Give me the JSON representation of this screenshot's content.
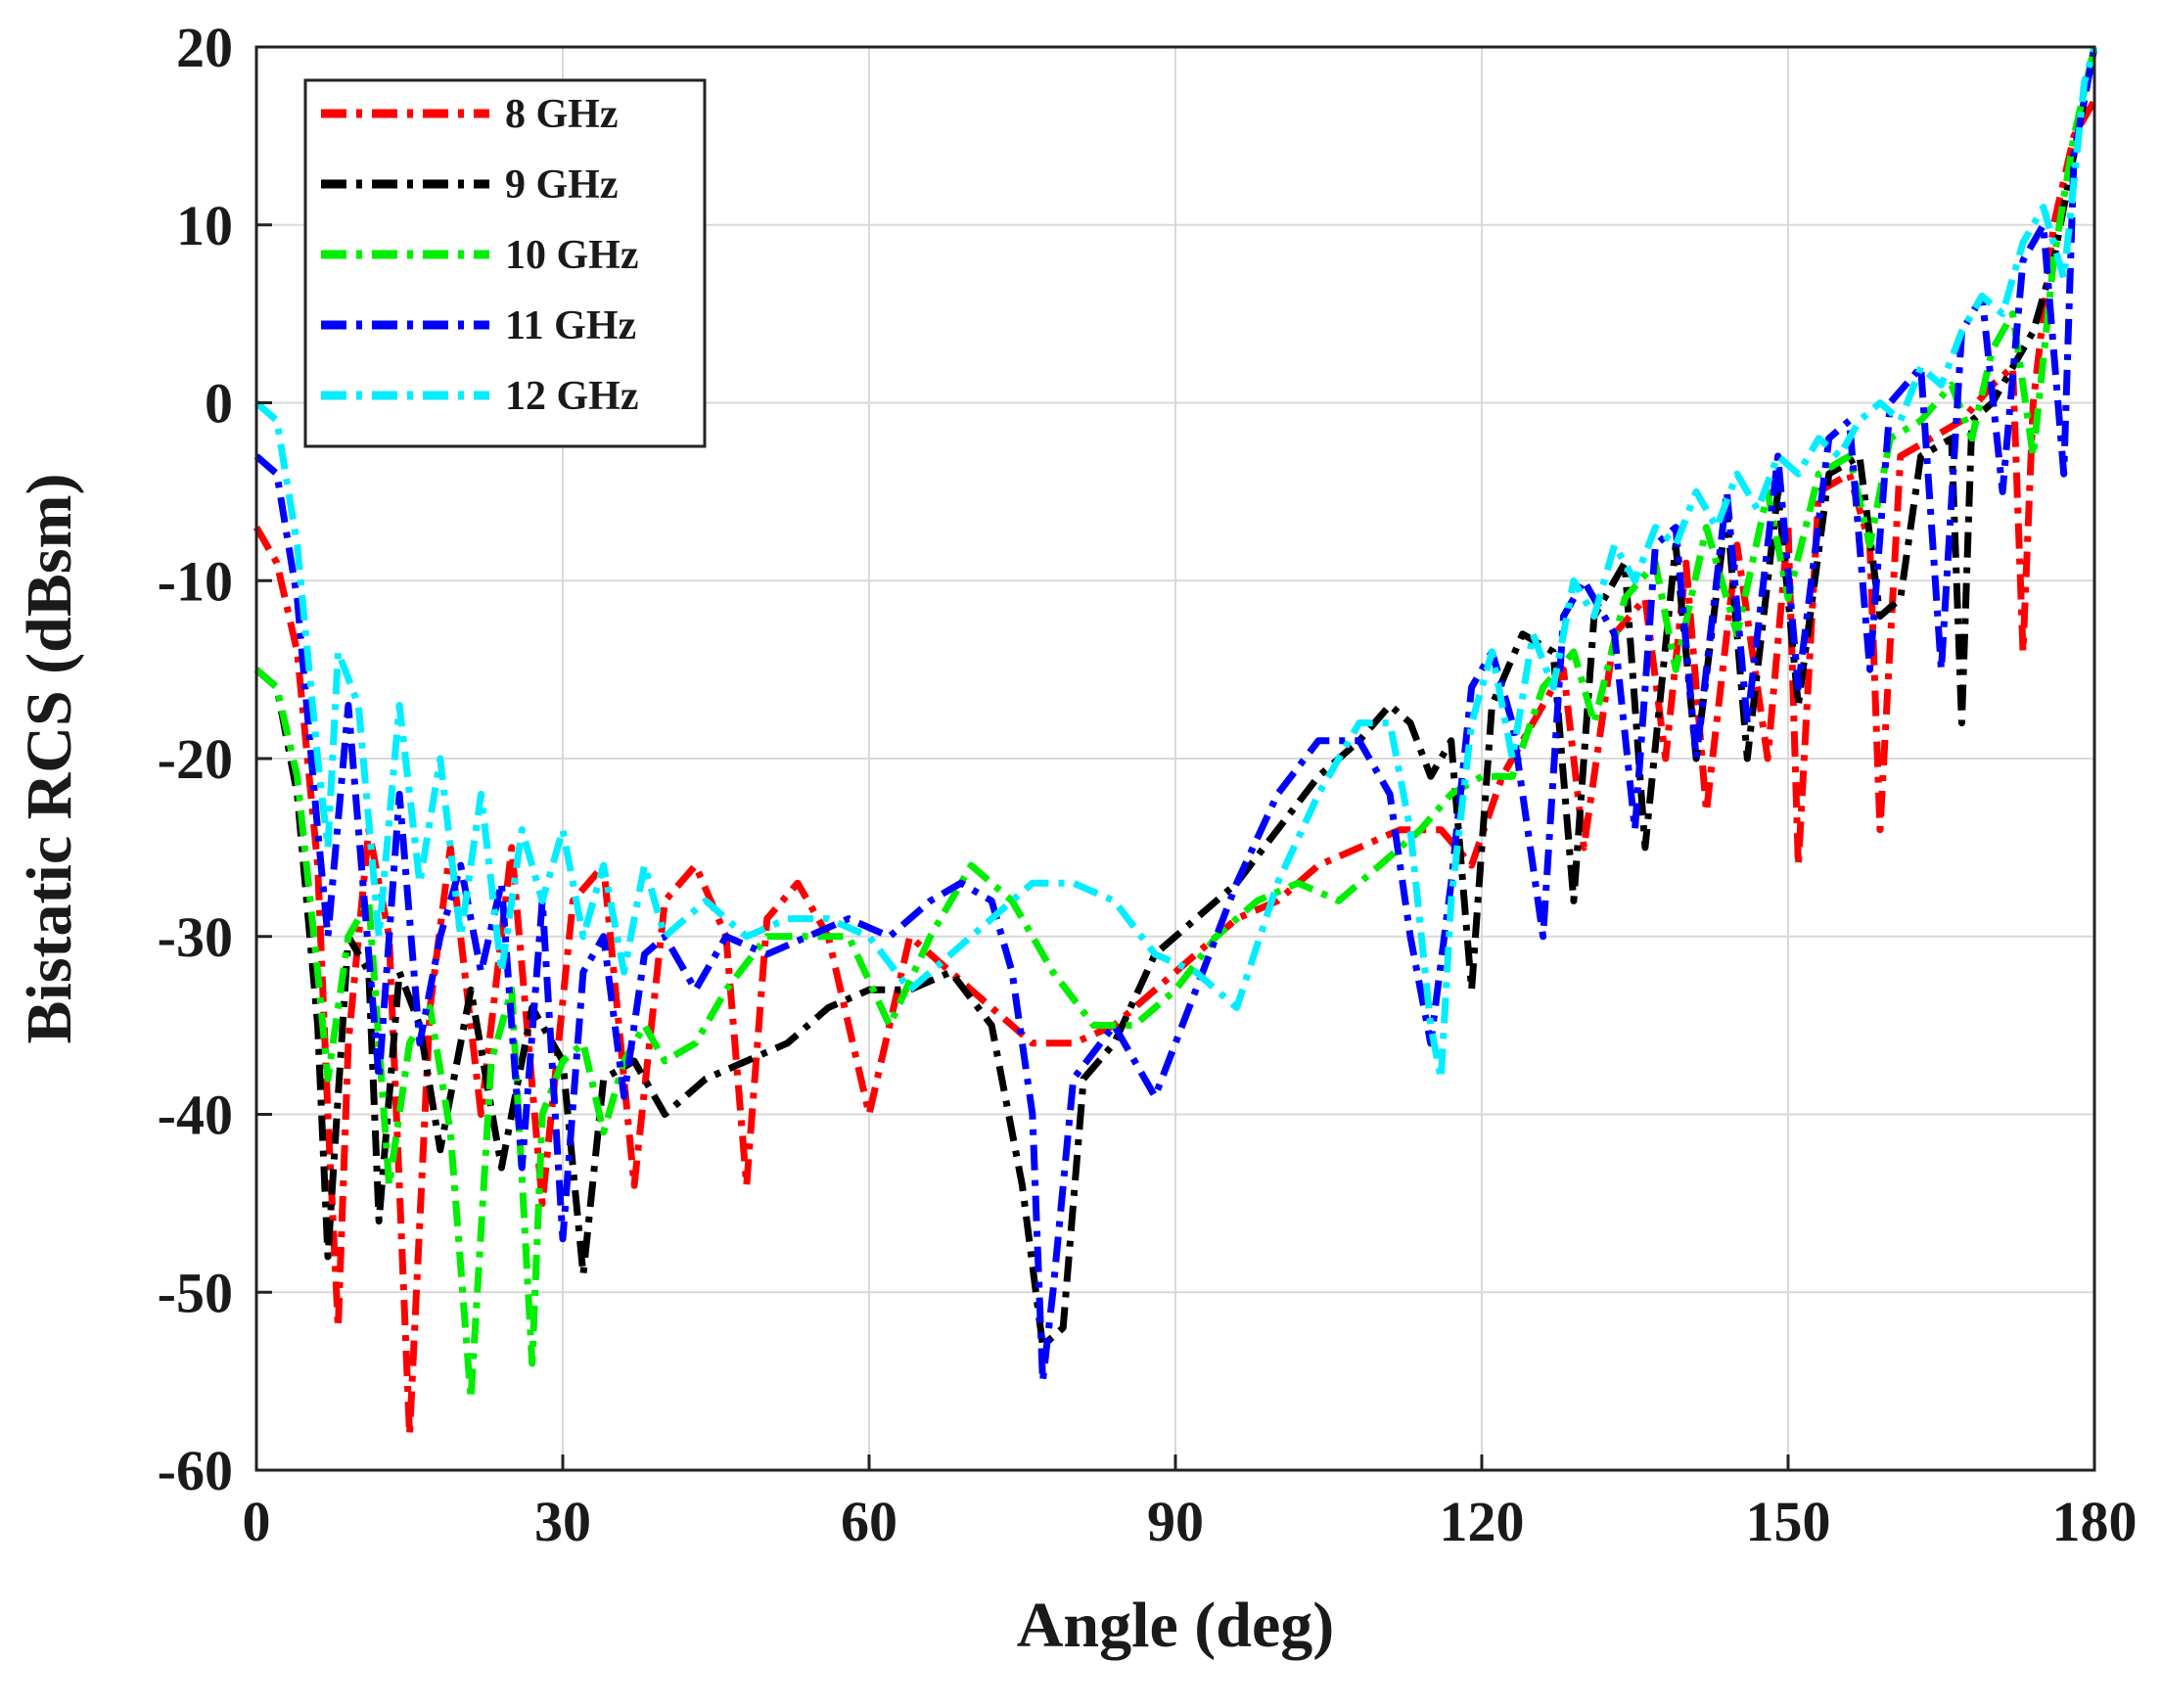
{
  "chart_data": {
    "type": "line",
    "title": "",
    "xlabel": "Angle (deg)",
    "ylabel": "Bistatic RCS (dBsm)",
    "xlim": [
      0,
      180
    ],
    "ylim": [
      -60,
      20
    ],
    "xticks": [
      0,
      30,
      60,
      90,
      120,
      150,
      180
    ],
    "yticks": [
      20,
      10,
      0,
      -10,
      -20,
      -30,
      -40,
      -50,
      -60
    ],
    "grid": true,
    "legend_position": "top-left",
    "line_style": "dash-dot",
    "series": [
      {
        "name": "8 GHz",
        "color": "#ff0000",
        "x": [
          0,
          2,
          4,
          6,
          7,
          8,
          9,
          11,
          13,
          15,
          17,
          19,
          22,
          25,
          28,
          31,
          34,
          37,
          40,
          43,
          46,
          48,
          50,
          53,
          56,
          60,
          64,
          68,
          72,
          76,
          80,
          84,
          88,
          92,
          96,
          100,
          104,
          108,
          112,
          116,
          119,
          122,
          125,
          128,
          130,
          133,
          136,
          138,
          140,
          142,
          145,
          148,
          150,
          151,
          153,
          156,
          158,
          159,
          161,
          164,
          167,
          170,
          172,
          173,
          174,
          176,
          178,
          180
        ],
        "y": [
          -7,
          -9,
          -14,
          -26,
          -40,
          -52,
          -36,
          -24,
          -30,
          -58,
          -34,
          -25,
          -40,
          -25,
          -45,
          -28,
          -26,
          -44,
          -28,
          -26,
          -30,
          -44,
          -29,
          -27,
          -30,
          -40,
          -30,
          -32,
          -34,
          -36,
          -36,
          -35,
          -33,
          -31,
          -29,
          -28,
          -26,
          -25,
          -24,
          -24,
          -26,
          -21,
          -18,
          -15,
          -25,
          -13,
          -11,
          -20,
          -9,
          -23,
          -8,
          -20,
          -7,
          -26,
          -5,
          -4,
          -8,
          -24,
          -3,
          -2,
          -1,
          1,
          2,
          -14,
          0,
          10,
          15,
          17
        ]
      },
      {
        "name": "9 GHz",
        "color": "#000000",
        "x": [
          0,
          2,
          4,
          6,
          7,
          9,
          11,
          12,
          14,
          16,
          18,
          21,
          24,
          27,
          30,
          32,
          34,
          37,
          40,
          44,
          48,
          52,
          56,
          60,
          64,
          68,
          72,
          75,
          77,
          79,
          81,
          84,
          88,
          92,
          96,
          100,
          104,
          108,
          111,
          113,
          115,
          117,
          119,
          121,
          124,
          127,
          129,
          131,
          134,
          136,
          139,
          141,
          144,
          146,
          149,
          151,
          154,
          157,
          159,
          161,
          163,
          166,
          167,
          168,
          170,
          172,
          174,
          176,
          178,
          180
        ],
        "y": [
          -15,
          -16,
          -22,
          -35,
          -48,
          -30,
          -32,
          -46,
          -32,
          -35,
          -42,
          -33,
          -43,
          -34,
          -37,
          -49,
          -38,
          -37,
          -40,
          -38,
          -37,
          -36,
          -34,
          -33,
          -33,
          -32,
          -35,
          -44,
          -53,
          -52,
          -38,
          -36,
          -31,
          -29,
          -27,
          -24,
          -21,
          -19,
          -17,
          -18,
          -21,
          -19,
          -33,
          -17,
          -13,
          -14,
          -28,
          -12,
          -9,
          -25,
          -8,
          -20,
          -6,
          -20,
          -5,
          -17,
          -4,
          -3,
          -12,
          -11,
          -3,
          -2,
          -18,
          -1,
          0,
          2,
          4,
          8,
          14,
          20
        ]
      },
      {
        "name": "10 GHz",
        "color": "#00ee00",
        "x": [
          0,
          2,
          4,
          6,
          7,
          9,
          11,
          13,
          15,
          17,
          19,
          21,
          23,
          25,
          27,
          28,
          30,
          32,
          34,
          36,
          38,
          40,
          43,
          46,
          50,
          54,
          58,
          62,
          66,
          70,
          74,
          78,
          82,
          86,
          90,
          94,
          98,
          102,
          106,
          110,
          114,
          117,
          120,
          123,
          126,
          129,
          131,
          134,
          137,
          139,
          142,
          145,
          148,
          150,
          153,
          156,
          158,
          160,
          163,
          166,
          168,
          170,
          172,
          174,
          176,
          178,
          180
        ],
        "y": [
          -15,
          -16,
          -21,
          -32,
          -38,
          -30,
          -28,
          -44,
          -36,
          -34,
          -41,
          -56,
          -37,
          -33,
          -54,
          -40,
          -37,
          -36,
          -41,
          -37,
          -35,
          -37,
          -36,
          -33,
          -30,
          -30,
          -30,
          -35,
          -30,
          -26,
          -28,
          -32,
          -35,
          -35,
          -33,
          -30,
          -28,
          -27,
          -28,
          -26,
          -24,
          -22,
          -21,
          -21,
          -16,
          -14,
          -18,
          -11,
          -9,
          -15,
          -7,
          -13,
          -5,
          -11,
          -4,
          -3,
          -8,
          -2,
          -1,
          1,
          -2,
          3,
          5,
          -3,
          8,
          15,
          20
        ]
      },
      {
        "name": "11 GHz",
        "color": "#0000ff",
        "x": [
          0,
          2,
          4,
          6,
          7,
          9,
          10,
          12,
          14,
          16,
          18,
          20,
          22,
          24,
          26,
          28,
          30,
          32,
          34,
          36,
          38,
          40,
          43,
          46,
          50,
          54,
          58,
          62,
          66,
          69,
          72,
          74,
          76,
          77,
          78,
          80,
          84,
          88,
          92,
          96,
          100,
          104,
          108,
          111,
          113,
          115,
          117,
          119,
          121,
          123,
          126,
          128,
          130,
          133,
          135,
          137,
          139,
          141,
          144,
          146,
          149,
          151,
          154,
          156,
          158,
          160,
          163,
          165,
          167,
          169,
          171,
          173,
          175,
          177,
          178,
          180
        ],
        "y": [
          -3,
          -4,
          -11,
          -24,
          -30,
          -17,
          -24,
          -38,
          -22,
          -36,
          -30,
          -26,
          -32,
          -27,
          -43,
          -28,
          -47,
          -32,
          -30,
          -39,
          -31,
          -30,
          -33,
          -30,
          -31,
          -30,
          -29,
          -30,
          -28,
          -27,
          -28,
          -32,
          -40,
          -55,
          -50,
          -38,
          -35,
          -39,
          -33,
          -27,
          -22,
          -19,
          -19,
          -22,
          -30,
          -36,
          -27,
          -16,
          -14,
          -18,
          -30,
          -12,
          -10,
          -13,
          -24,
          -8,
          -7,
          -20,
          -5,
          -18,
          -3,
          -16,
          -2,
          -1,
          -15,
          0,
          2,
          -15,
          4,
          6,
          -5,
          8,
          10,
          -4,
          14,
          20
        ]
      },
      {
        "name": "12 GHz",
        "color": "#00eeff",
        "x": [
          0,
          2,
          4,
          6,
          7,
          8,
          10,
          12,
          14,
          16,
          18,
          20,
          22,
          24,
          26,
          28,
          30,
          32,
          34,
          36,
          38,
          40,
          44,
          48,
          52,
          56,
          60,
          64,
          68,
          72,
          76,
          80,
          84,
          88,
          92,
          96,
          100,
          104,
          108,
          111,
          113,
          115,
          116,
          117,
          119,
          121,
          123,
          125,
          127,
          129,
          131,
          133,
          135,
          137,
          139,
          141,
          143,
          145,
          147,
          149,
          151,
          153,
          155,
          157,
          159,
          161,
          163,
          165,
          167,
          169,
          171,
          173,
          175,
          177,
          179,
          180
        ],
        "y": [
          0,
          -1,
          -8,
          -20,
          -25,
          -14,
          -17,
          -30,
          -17,
          -27,
          -20,
          -30,
          -22,
          -32,
          -24,
          -28,
          -24,
          -30,
          -26,
          -32,
          -26,
          -30,
          -28,
          -30,
          -29,
          -29,
          -30,
          -33,
          -31,
          -29,
          -27,
          -27,
          -28,
          -31,
          -32,
          -34,
          -27,
          -22,
          -18,
          -18,
          -24,
          -35,
          -38,
          -28,
          -18,
          -14,
          -20,
          -13,
          -16,
          -10,
          -12,
          -8,
          -10,
          -7,
          -8,
          -5,
          -7,
          -4,
          -6,
          -3,
          -4,
          -2,
          -3,
          -1,
          0,
          -1,
          2,
          1,
          4,
          6,
          5,
          9,
          11,
          7,
          18,
          20
        ]
      }
    ]
  }
}
